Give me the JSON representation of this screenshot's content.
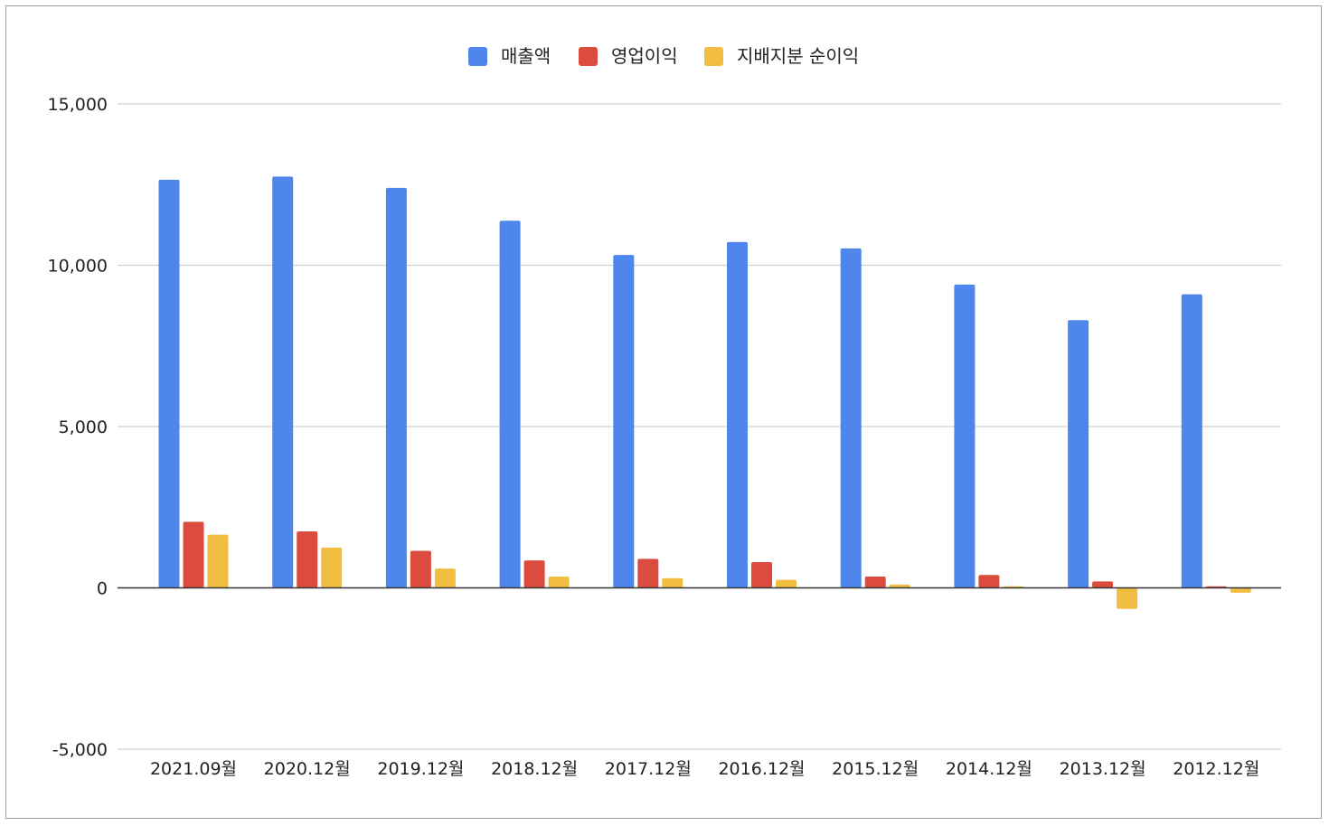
{
  "chart_data": {
    "type": "bar",
    "title": "",
    "xlabel": "",
    "ylabel": "",
    "categories": [
      "2021.09월",
      "2020.12월",
      "2019.12월",
      "2018.12월",
      "2017.12월",
      "2016.12월",
      "2015.12월",
      "2014.12월",
      "2013.12월",
      "2012.12월"
    ],
    "series": [
      {
        "name": "매출액",
        "color": "#4f86ec",
        "values": [
          12650,
          12750,
          12400,
          11380,
          10320,
          10720,
          10520,
          9400,
          8300,
          9100
        ]
      },
      {
        "name": "영업이익",
        "color": "#db4c3f",
        "values": [
          2050,
          1750,
          1150,
          850,
          900,
          800,
          350,
          400,
          200,
          50
        ]
      },
      {
        "name": "지배지분 순이익",
        "color": "#f2be42",
        "values": [
          1650,
          1250,
          600,
          350,
          300,
          250,
          100,
          50,
          -650,
          -150
        ]
      }
    ],
    "ylim": [
      -5000,
      15000
    ],
    "yticks": [
      15000,
      10000,
      5000,
      0,
      -5000
    ],
    "ytick_labels": [
      "15,000",
      "10,000",
      "5,000",
      "0",
      "-5,000"
    ],
    "grid": true,
    "legend_position": "top-center"
  }
}
